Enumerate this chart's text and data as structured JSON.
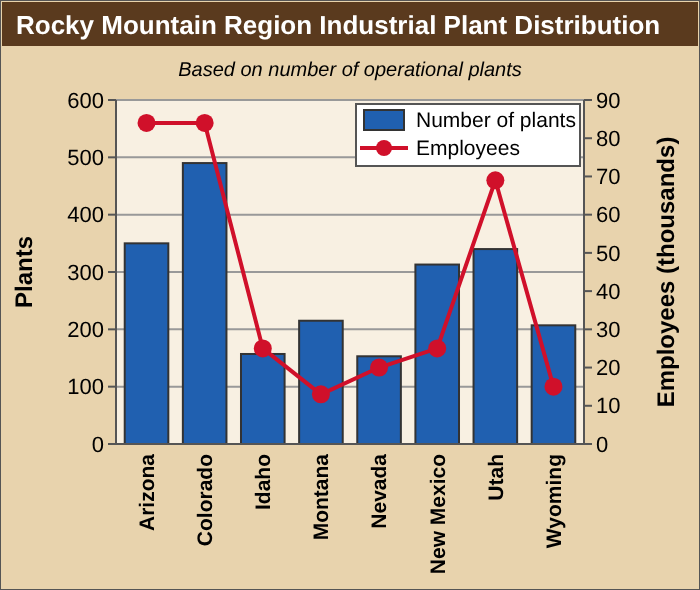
{
  "chart_data": {
    "type": "bar",
    "title": "Rocky Mountain Region Industrial Plant Distribution",
    "subtitle": "Based on number of operational plants",
    "categories": [
      "Arizona",
      "Colorado",
      "Idaho",
      "Montana",
      "Nevada",
      "New Mexico",
      "Utah",
      "Wyoming"
    ],
    "series": [
      {
        "name": "Number of plants",
        "color": "#2060b0",
        "values": [
          350,
          490,
          157,
          215,
          153,
          313,
          340,
          207
        ]
      },
      {
        "name": "Employees",
        "type": "line",
        "axis": "y2",
        "color": "#d0102a",
        "marker": "circle",
        "values": [
          84,
          84,
          25,
          13,
          20,
          25,
          69,
          15
        ]
      }
    ],
    "ylabel": "Plants",
    "y2label": "Employees (thousands)",
    "ylim": [
      0,
      600
    ],
    "yticks": [
      0,
      100,
      200,
      300,
      400,
      500,
      600
    ],
    "y2lim": [
      0,
      90
    ],
    "y2ticks": [
      0,
      10,
      20,
      30,
      40,
      50,
      60,
      70,
      80,
      90
    ],
    "grid": "y",
    "legend": "top right"
  }
}
